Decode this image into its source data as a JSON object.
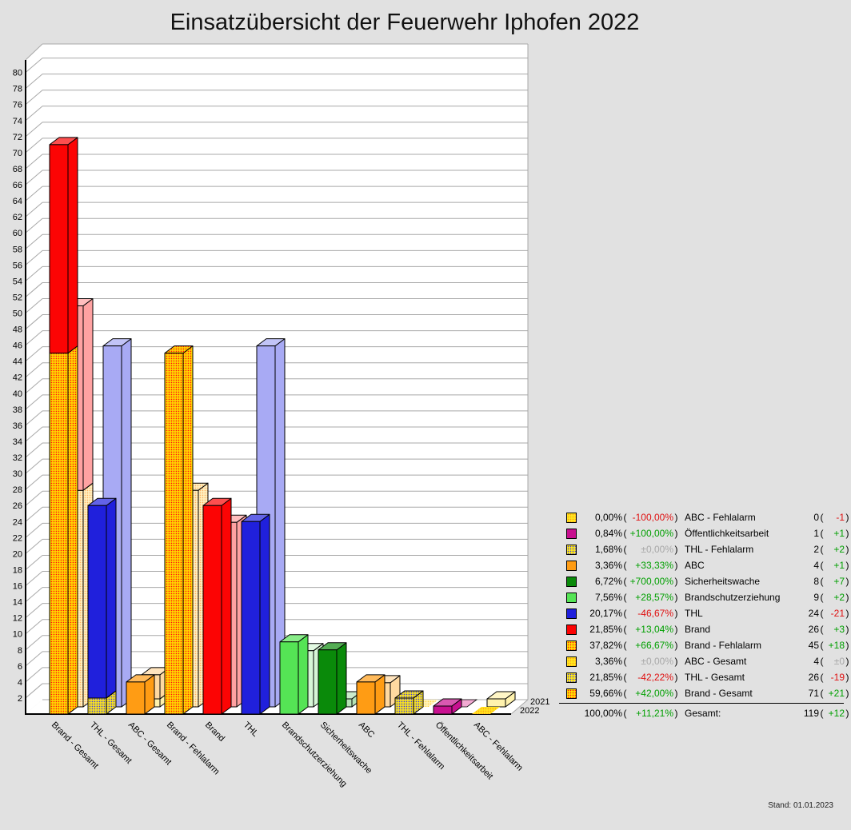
{
  "title": "Einsatzübersicht der Feuerwehr Iphofen 2022",
  "footer": {
    "stand": "Stand: 01.01.2023"
  },
  "punct": {
    "open": "(",
    "close": ")"
  },
  "years": {
    "back": "2021",
    "front": "2022"
  },
  "chart_data": {
    "type": "bar",
    "title": "Einsatzübersicht der Feuerwehr Iphofen 2022",
    "ylim": [
      0,
      80
    ],
    "ytick_step": 2,
    "grid": true,
    "legend_position": "right",
    "categories": [
      "Brand - Gesamt",
      "THL - Gesamt",
      "ABC - Gesamt",
      "Brand - Fehlalarm",
      "Brand",
      "THL",
      "Brandschutzerziehung",
      "Sicherheitswache",
      "ABC",
      "THL - Fehlalarm",
      "Öffentlichkeitsarbeit",
      "ABC - Fehlalarm"
    ],
    "series": [
      {
        "name": "2022",
        "values": [
          71,
          26,
          4,
          45,
          26,
          24,
          9,
          8,
          4,
          2,
          1,
          0
        ]
      },
      {
        "name": "2021",
        "values": [
          50,
          45,
          4,
          27,
          23,
          45,
          7,
          1,
          3,
          0,
          0,
          1
        ]
      }
    ],
    "bars": [
      {
        "category": "Brand - Gesamt",
        "front": [
          {
            "v": 45,
            "fill": "hatch_brand"
          },
          {
            "v": 26,
            "fill": "red"
          }
        ],
        "back": [
          {
            "v": 27,
            "fill": "hatch_brand_pale"
          },
          {
            "v": 23,
            "fill": "pink"
          }
        ]
      },
      {
        "category": "THL - Gesamt",
        "front": [
          {
            "v": 2,
            "fill": "hatch_thl"
          },
          {
            "v": 24,
            "fill": "blue"
          }
        ],
        "back": [
          {
            "v": 0,
            "fill": "hatch_thl_pale"
          },
          {
            "v": 45,
            "fill": "blue_pale"
          }
        ]
      },
      {
        "category": "ABC - Gesamt",
        "front": [
          {
            "v": 0,
            "fill": "hatch_abc"
          },
          {
            "v": 4,
            "fill": "orange"
          }
        ],
        "back": [
          {
            "v": 1,
            "fill": "yellow_pale"
          },
          {
            "v": 3,
            "fill": "orange_pale"
          }
        ]
      },
      {
        "category": "Brand - Fehlalarm",
        "front": [
          {
            "v": 45,
            "fill": "hatch_brand"
          }
        ],
        "back": [
          {
            "v": 27,
            "fill": "hatch_brand_pale"
          }
        ]
      },
      {
        "category": "Brand",
        "front": [
          {
            "v": 26,
            "fill": "red"
          }
        ],
        "back": [
          {
            "v": 23,
            "fill": "pink"
          }
        ]
      },
      {
        "category": "THL",
        "front": [
          {
            "v": 24,
            "fill": "blue"
          }
        ],
        "back": [
          {
            "v": 45,
            "fill": "blue_pale"
          }
        ]
      },
      {
        "category": "Brandschutzerziehung",
        "front": [
          {
            "v": 9,
            "fill": "green_light"
          }
        ],
        "back": [
          {
            "v": 7,
            "fill": "green_light_pale"
          }
        ]
      },
      {
        "category": "Sicherheitswache",
        "front": [
          {
            "v": 8,
            "fill": "green_dark"
          }
        ],
        "back": [
          {
            "v": 1,
            "fill": "green_dark_pale"
          }
        ]
      },
      {
        "category": "ABC",
        "front": [
          {
            "v": 4,
            "fill": "orange"
          }
        ],
        "back": [
          {
            "v": 3,
            "fill": "orange_pale"
          }
        ]
      },
      {
        "category": "THL - Fehlalarm",
        "front": [
          {
            "v": 2,
            "fill": "hatch_thl"
          }
        ],
        "back": [
          {
            "v": 0,
            "fill": "hatch_thl_pale"
          }
        ]
      },
      {
        "category": "Öffentlichkeitsarbeit",
        "front": [
          {
            "v": 1,
            "fill": "magenta"
          }
        ],
        "back": [
          {
            "v": 0,
            "fill": "magenta_pale"
          }
        ]
      },
      {
        "category": "ABC - Fehlalarm",
        "front": [
          {
            "v": 0,
            "fill": "hatch_abc"
          }
        ],
        "back": [
          {
            "v": 1,
            "fill": "yellow_pale"
          }
        ]
      }
    ],
    "colors": {
      "red": "#fc0404",
      "pink": "#ffa2a2",
      "blue": "#2020dc",
      "blue_pale": "#a8aaf4",
      "orange": "#ff9c14",
      "orange_pale": "#ffd9a1",
      "yellow_pale": "#fff2ad",
      "green_dark": "#0a8a0a",
      "green_dark_pale": "#b5e3b5",
      "green_light": "#55e455",
      "green_light_pale": "#d6f6d6",
      "magenta": "#c81090",
      "magenta_pale": "#f2aad2",
      "hatch_brand": {
        "bg": "#ffdf00",
        "dot": "#ff1010"
      },
      "hatch_brand_pale": {
        "bg": "#fff3c4",
        "dot": "#ffae5e"
      },
      "hatch_thl": {
        "bg": "#ffe81c",
        "dot": "#3a3ae0"
      },
      "hatch_thl_pale": {
        "bg": "#fff6c0",
        "dot": "#ffd040"
      },
      "hatch_abc": {
        "bg": "#ffe81c",
        "dot": "#ff9818"
      }
    },
    "status_colors": {
      "pos": "#00a000",
      "neg": "#e01010",
      "zero": "#a8a8a8"
    }
  },
  "legend": {
    "rows": [
      {
        "icon": "hatch_abc",
        "pct": "0,00%",
        "chg": "-100,00%",
        "chg_c": "neg",
        "label": "ABC - Fehlalarm",
        "val": "0",
        "d": "-1",
        "d_c": "neg"
      },
      {
        "icon": "magenta",
        "pct": "0,84%",
        "chg": "+100,00%",
        "chg_c": "pos",
        "label": "Öffentlichkeitsarbeit",
        "val": "1",
        "d": "+1",
        "d_c": "pos"
      },
      {
        "icon": "hatch_thl",
        "pct": "1,68%",
        "chg": "±0,00%",
        "chg_c": "zero",
        "label": "THL - Fehlalarm",
        "val": "2",
        "d": "+2",
        "d_c": "pos"
      },
      {
        "icon": "orange",
        "pct": "3,36%",
        "chg": "+33,33%",
        "chg_c": "pos",
        "label": "ABC",
        "val": "4",
        "d": "+1",
        "d_c": "pos"
      },
      {
        "icon": "green_dark",
        "pct": "6,72%",
        "chg": "+700,00%",
        "chg_c": "pos",
        "label": "Sicherheitswache",
        "val": "8",
        "d": "+7",
        "d_c": "pos"
      },
      {
        "icon": "green_light",
        "pct": "7,56%",
        "chg": "+28,57%",
        "chg_c": "pos",
        "label": "Brandschutzerziehung",
        "val": "9",
        "d": "+2",
        "d_c": "pos"
      },
      {
        "icon": "blue",
        "pct": "20,17%",
        "chg": "-46,67%",
        "chg_c": "neg",
        "label": "THL",
        "val": "24",
        "d": "-21",
        "d_c": "neg"
      },
      {
        "icon": "red",
        "pct": "21,85%",
        "chg": "+13,04%",
        "chg_c": "pos",
        "label": "Brand",
        "val": "26",
        "d": "+3",
        "d_c": "pos"
      },
      {
        "icon": "hatch_brand",
        "pct": "37,82%",
        "chg": "+66,67%",
        "chg_c": "pos",
        "label": "Brand - Fehlalarm",
        "val": "45",
        "d": "+18",
        "d_c": "pos"
      },
      {
        "icon": "hatch_abc",
        "pct": "3,36%",
        "chg": "±0,00%",
        "chg_c": "zero",
        "label": "ABC - Gesamt",
        "val": "4",
        "d": "±0",
        "d_c": "zero"
      },
      {
        "icon": "hatch_thl",
        "pct": "21,85%",
        "chg": "-42,22%",
        "chg_c": "neg",
        "label": "THL - Gesamt",
        "val": "26",
        "d": "-19",
        "d_c": "neg"
      },
      {
        "icon": "hatch_brand",
        "pct": "59,66%",
        "chg": "+42,00%",
        "chg_c": "pos",
        "label": "Brand - Gesamt",
        "val": "71",
        "d": "+21",
        "d_c": "pos"
      }
    ],
    "total": {
      "pct": "100,00%",
      "chg": "+11,21%",
      "chg_c": "pos",
      "label": "Gesamt:",
      "val": "119",
      "d": "+12",
      "d_c": "pos"
    }
  }
}
